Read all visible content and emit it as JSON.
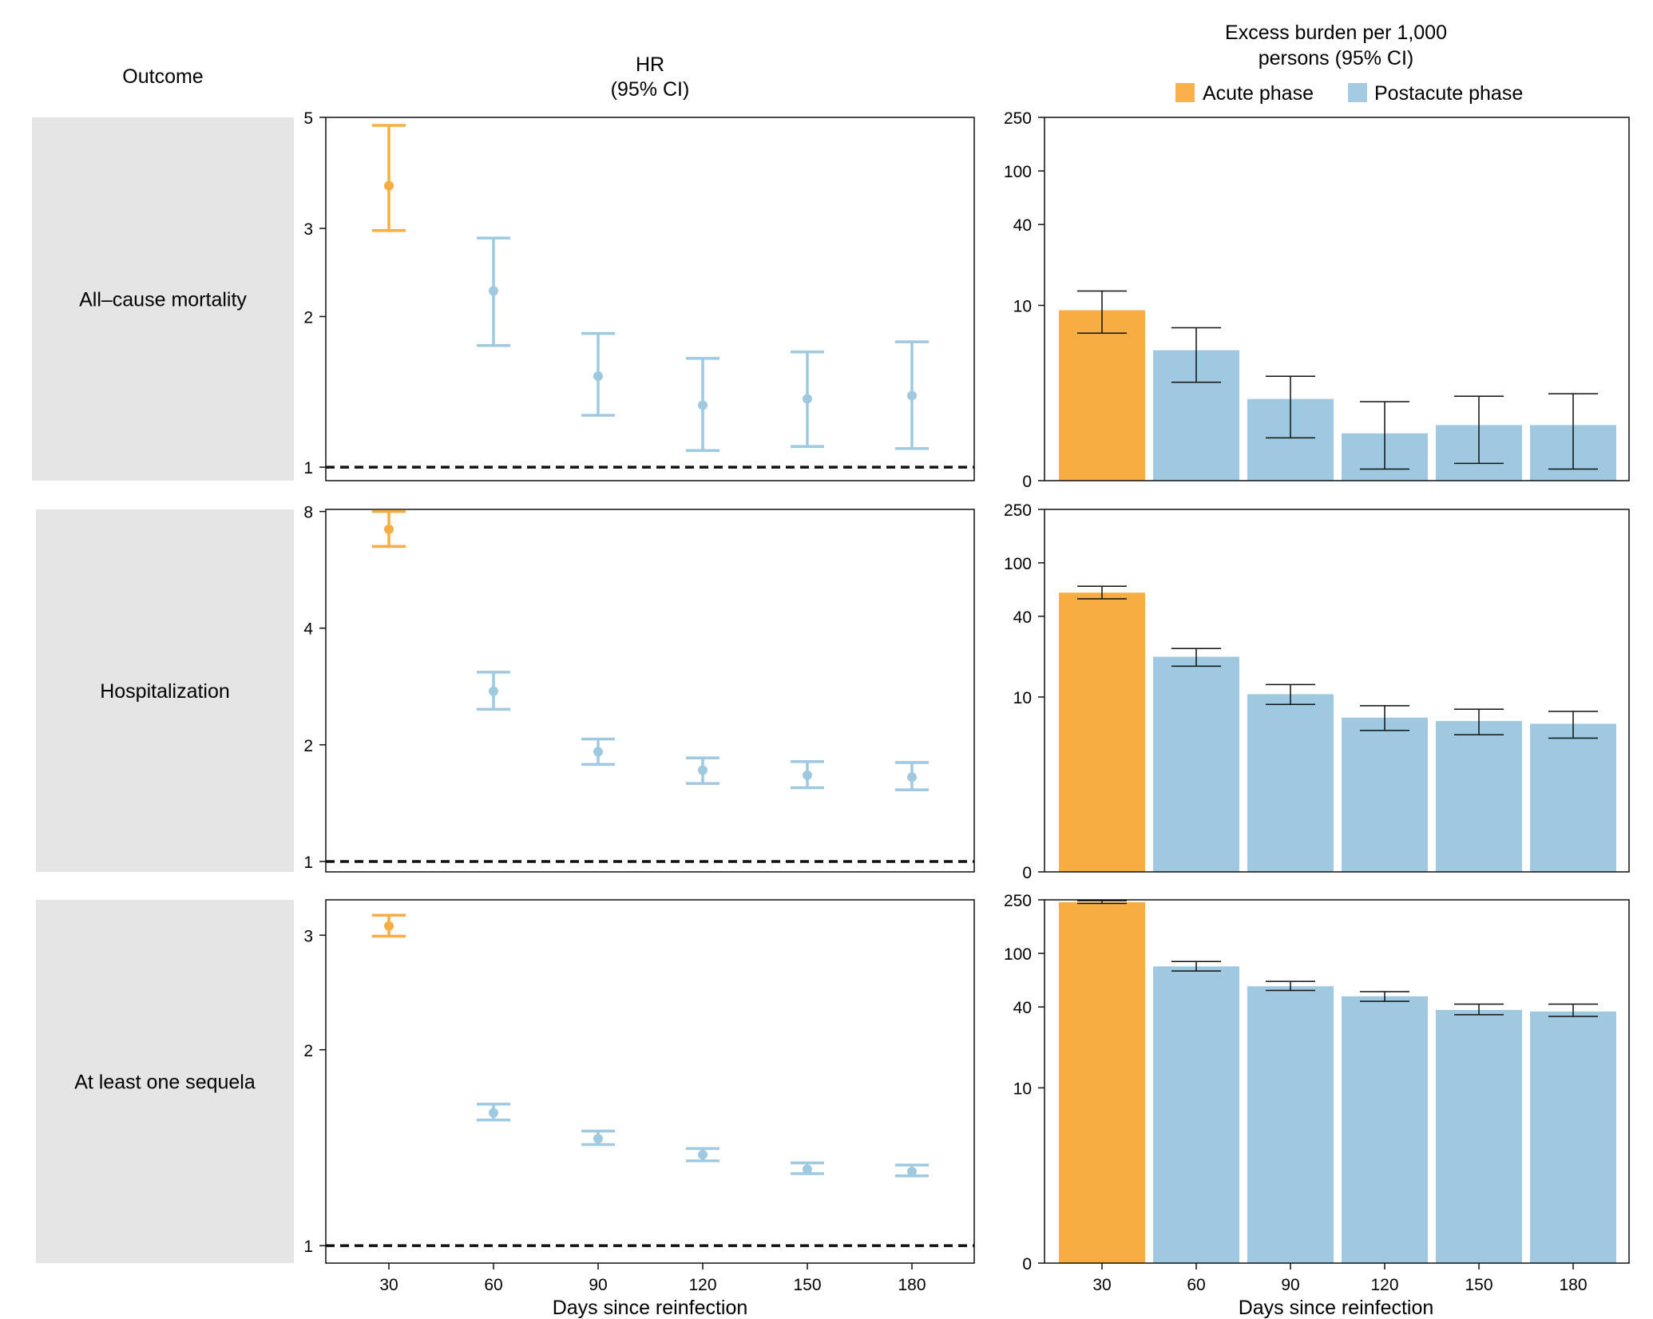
{
  "headers": {
    "outcome": "Outcome",
    "hr_line1": "HR",
    "hr_line2": "(95% CI)",
    "burden_line1": "Excess burden per 1,000",
    "burden_line2": "persons (95% CI)"
  },
  "legend": [
    {
      "label": "Acute phase",
      "color": "#FBB04C"
    },
    {
      "label": "Postacute phase",
      "color": "#A4CBE1"
    }
  ],
  "colors": {
    "acute": "#F8AD42",
    "postacute": "#9FC9E0",
    "band": "#E5E5E5"
  },
  "x_axis_label": "Days since reinfection",
  "chart_data": [
    {
      "type": "scatter",
      "subtype": "point-range",
      "panel": "HR",
      "outcome": "All–cause mortality",
      "x": [
        30,
        60,
        90,
        120,
        150,
        180
      ],
      "hr": [
        3.65,
        2.25,
        1.52,
        1.33,
        1.37,
        1.39
      ],
      "ci_low": [
        2.97,
        1.75,
        1.27,
        1.08,
        1.1,
        1.09
      ],
      "ci_high": [
        4.82,
        2.87,
        1.85,
        1.65,
        1.7,
        1.78
      ],
      "yscale": "log",
      "yticks": [
        1,
        2,
        3,
        5
      ],
      "ylim": [
        0.94,
        5.0
      ],
      "reference_line": 1
    },
    {
      "type": "bar",
      "panel": "Excess burden",
      "outcome": "All–cause mortality",
      "categories": [
        "30",
        "60",
        "90",
        "120",
        "150",
        "180"
      ],
      "values": [
        9.2,
        4.6,
        1.9,
        0.9,
        1.1,
        1.1
      ],
      "ci_low": [
        6.2,
        2.6,
        0.8,
        0.2,
        0.3,
        0.2
      ],
      "ci_high": [
        12.8,
        6.8,
        2.9,
        1.8,
        2.0,
        2.1
      ],
      "yscale": "asinh",
      "yticks": [
        0,
        10,
        40,
        100,
        250
      ],
      "ylim": [
        0,
        250
      ]
    },
    {
      "type": "scatter",
      "subtype": "point-range",
      "panel": "HR",
      "outcome": "Hospitalization",
      "x": [
        30,
        60,
        90,
        120,
        150,
        180
      ],
      "hr": [
        7.2,
        2.75,
        1.92,
        1.72,
        1.67,
        1.65
      ],
      "ci_low": [
        6.5,
        2.47,
        1.78,
        1.59,
        1.55,
        1.53
      ],
      "ci_high": [
        8.0,
        3.08,
        2.07,
        1.85,
        1.81,
        1.8
      ],
      "yscale": "log",
      "yticks": [
        1,
        2,
        4,
        8
      ],
      "ylim": [
        0.94,
        8.1
      ],
      "reference_line": 1
    },
    {
      "type": "bar",
      "panel": "Excess burden",
      "outcome": "Hospitalization",
      "categories": [
        "30",
        "60",
        "90",
        "120",
        "150",
        "180"
      ],
      "values": [
        60,
        20,
        10.5,
        7.0,
        6.6,
        6.3
      ],
      "ci_low": [
        54,
        17,
        8.8,
        5.6,
        5.2,
        4.9
      ],
      "ci_high": [
        67,
        23,
        12.4,
        8.6,
        8.1,
        7.8
      ],
      "yscale": "asinh",
      "yticks": [
        0,
        10,
        40,
        100,
        250
      ],
      "ylim": [
        0,
        250
      ]
    },
    {
      "type": "scatter",
      "subtype": "point-range",
      "panel": "HR",
      "outcome": "At least one sequela",
      "x": [
        30,
        60,
        90,
        120,
        150,
        180
      ],
      "hr": [
        3.1,
        1.6,
        1.46,
        1.38,
        1.31,
        1.3
      ],
      "ci_low": [
        2.99,
        1.56,
        1.43,
        1.35,
        1.29,
        1.28
      ],
      "ci_high": [
        3.22,
        1.65,
        1.5,
        1.41,
        1.34,
        1.33
      ],
      "yscale": "log",
      "yticks": [
        1,
        2,
        3
      ],
      "ylim": [
        0.94,
        3.4
      ],
      "reference_line": 1
    },
    {
      "type": "bar",
      "panel": "Excess burden",
      "outcome": "At least one sequela",
      "categories": [
        "30",
        "60",
        "90",
        "120",
        "150",
        "180"
      ],
      "values": [
        240,
        80,
        57,
        48,
        38,
        37
      ],
      "ci_low": [
        235,
        74,
        53,
        44,
        35,
        34
      ],
      "ci_high": [
        246,
        87,
        62,
        52,
        42,
        42
      ],
      "yscale": "asinh",
      "yticks": [
        0,
        10,
        40,
        100,
        250
      ],
      "ylim": [
        0,
        250
      ]
    }
  ]
}
